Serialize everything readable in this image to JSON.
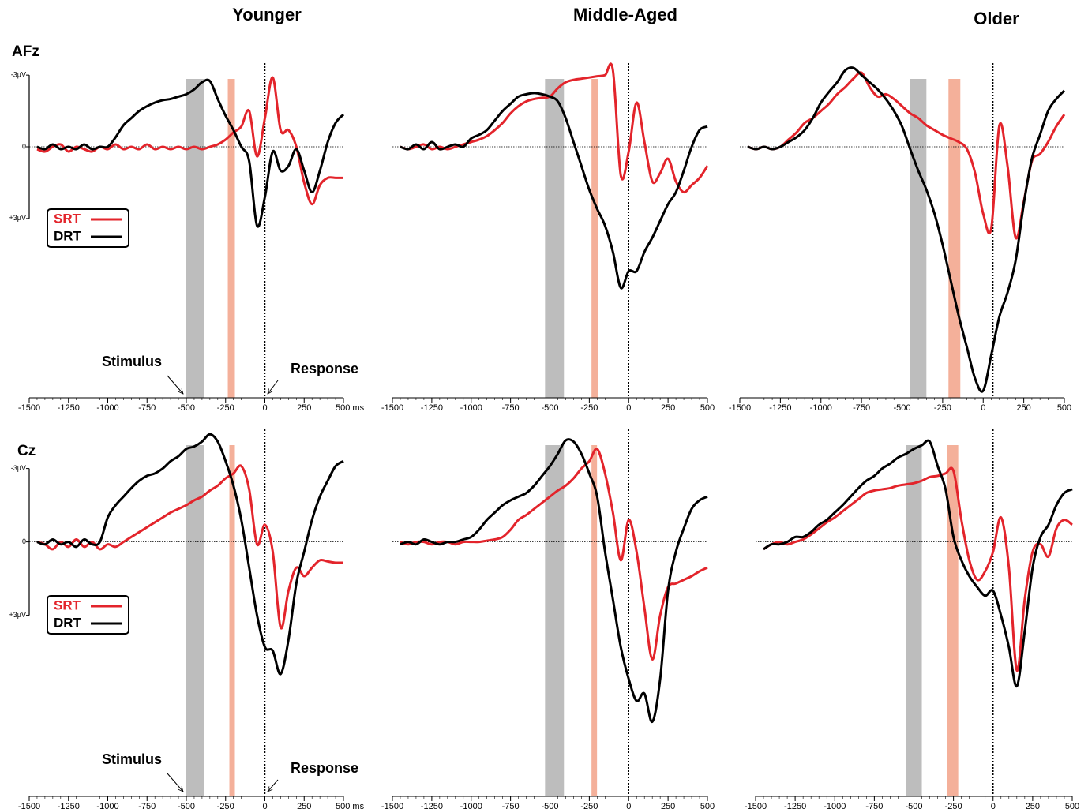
{
  "chart_data": [
    {
      "type": "line",
      "title": "Younger",
      "channel": "AFz",
      "x": [
        -1450,
        -1400,
        -1350,
        -1300,
        -1250,
        -1200,
        -1150,
        -1100,
        -1050,
        -1000,
        -950,
        -900,
        -850,
        -800,
        -750,
        -700,
        -650,
        -600,
        -550,
        -500,
        -450,
        -400,
        -350,
        -300,
        -250,
        -200,
        -150,
        -100,
        -50,
        0,
        50,
        100,
        150,
        200,
        250,
        300,
        350,
        400,
        450,
        500
      ],
      "series": [
        {
          "name": "SRT",
          "color": "#e3242b",
          "values": [
            0.1,
            0.2,
            0,
            -0.1,
            0.2,
            0,
            0.1,
            0.2,
            0,
            0.1,
            -0.1,
            0.1,
            0,
            0.1,
            -0.1,
            0.1,
            0,
            0.1,
            0,
            0.1,
            0,
            0.1,
            0,
            -0.1,
            -0.3,
            -0.6,
            -0.85,
            -1.5,
            0.4,
            -1.2,
            -2.9,
            -0.7,
            -0.7,
            0,
            1.5,
            2.4,
            1.6,
            1.3,
            1.3,
            1.3
          ]
        },
        {
          "name": "DRT",
          "color": "#000000",
          "values": [
            0,
            0.1,
            -0.1,
            0.1,
            0,
            0.1,
            -0.1,
            0.1,
            0,
            0,
            -0.4,
            -0.9,
            -1.2,
            -1.5,
            -1.7,
            -1.85,
            -1.95,
            -2.0,
            -2.1,
            -2.2,
            -2.4,
            -2.7,
            -2.75,
            -2.0,
            -1.3,
            -0.7,
            0,
            0.6,
            3.3,
            2.1,
            0.2,
            1.0,
            0.8,
            0.1,
            1.0,
            1.9,
            1.0,
            -0.2,
            -1.0,
            -1.35
          ]
        }
      ],
      "xlim": [
        -1500,
        500
      ],
      "ylim": [
        -3.5,
        10.5
      ],
      "y_inverted": true,
      "xticks": [
        -1500,
        -1250,
        -1000,
        -750,
        -500,
        -250,
        0,
        250,
        {
          "value": 500,
          "label": "500 ms"
        }
      ],
      "yticks": [
        {
          "value": -3,
          "label": "-3µV"
        },
        0,
        {
          "value": 3,
          "label": "+3µV"
        }
      ],
      "shaded": [
        {
          "x": [
            -503,
            -387
          ],
          "color": "#bdbdbd"
        },
        {
          "x": [
            -236,
            -191
          ],
          "color": "#f4b09a"
        }
      ],
      "response_line": 0,
      "zero_line": true,
      "legend": "left",
      "annotations": [
        "Stimulus",
        "Response"
      ]
    },
    {
      "type": "line",
      "title": "Middle-Aged",
      "x": [
        -1450,
        -1400,
        -1350,
        -1300,
        -1250,
        -1200,
        -1150,
        -1100,
        -1050,
        -1000,
        -950,
        -900,
        -850,
        -800,
        -750,
        -700,
        -650,
        -600,
        -550,
        -500,
        -450,
        -400,
        -350,
        -300,
        -250,
        -200,
        -150,
        -100,
        -50,
        0,
        50,
        100,
        150,
        200,
        250,
        300,
        350,
        400,
        450,
        500
      ],
      "series": [
        {
          "color": "#e3242b",
          "values": [
            0,
            0.1,
            0,
            -0.1,
            0.1,
            0,
            0.1,
            0,
            -0.1,
            -0.2,
            -0.3,
            -0.45,
            -0.7,
            -1.0,
            -1.4,
            -1.7,
            -1.9,
            -2.0,
            -2.05,
            -2.1,
            -2.45,
            -2.7,
            -2.8,
            -2.85,
            -2.9,
            -2.95,
            -3.0,
            -3.2,
            1.2,
            0.2,
            -1.85,
            -0.2,
            1.45,
            1.1,
            0.5,
            1.45,
            1.9,
            1.6,
            1.3,
            0.8
          ]
        },
        {
          "color": "#000000",
          "values": [
            0,
            0.1,
            -0.1,
            0.1,
            -0.2,
            0.1,
            0,
            -0.1,
            0,
            -0.35,
            -0.5,
            -0.7,
            -1.1,
            -1.5,
            -1.8,
            -2.1,
            -2.2,
            -2.25,
            -2.2,
            -2.1,
            -1.9,
            -1.2,
            -0.2,
            0.8,
            1.8,
            2.6,
            3.3,
            4.4,
            5.9,
            5.2,
            5.2,
            4.4,
            3.8,
            3.1,
            2.4,
            1.9,
            1.0,
            0,
            -0.7,
            -0.85
          ]
        }
      ],
      "xlim": [
        -1500,
        500
      ],
      "ylim": [
        -3.5,
        10.5
      ],
      "y_inverted": true,
      "xticks": [
        -1500,
        -1250,
        -1000,
        -750,
        -500,
        -250,
        0,
        250,
        500
      ],
      "shaded": [
        {
          "x": [
            -531,
            -411
          ],
          "color": "#bdbdbd"
        },
        {
          "x": [
            -236,
            -195
          ],
          "color": "#f4b09a"
        }
      ],
      "response_line": 0,
      "zero_line": true
    },
    {
      "type": "line",
      "title": "Older",
      "x": [
        -1450,
        -1400,
        -1350,
        -1300,
        -1250,
        -1200,
        -1150,
        -1100,
        -1050,
        -1000,
        -950,
        -900,
        -850,
        -800,
        -750,
        -700,
        -650,
        -600,
        -550,
        -500,
        -450,
        -400,
        -350,
        -300,
        -250,
        -200,
        -150,
        -100,
        -50,
        0,
        50,
        100,
        150,
        200,
        250,
        300,
        350,
        400,
        450,
        500
      ],
      "series": [
        {
          "color": "#e3242b",
          "values": [
            0,
            0.1,
            0,
            0.1,
            0,
            -0.3,
            -0.6,
            -1.0,
            -1.2,
            -1.5,
            -1.8,
            -2.2,
            -2.5,
            -2.85,
            -3.1,
            -2.5,
            -2.1,
            -2.2,
            -2.0,
            -1.7,
            -1.4,
            -1.2,
            -0.9,
            -0.7,
            -0.5,
            -0.35,
            -0.2,
            0.1,
            1.1,
            2.8,
            3.4,
            -0.9,
            0.8,
            3.8,
            2.3,
            0.6,
            0.3,
            -0.2,
            -0.85,
            -1.35
          ]
        },
        {
          "color": "#000000",
          "values": [
            0,
            0.1,
            0,
            0.1,
            0,
            -0.2,
            -0.4,
            -0.7,
            -1.2,
            -1.85,
            -2.3,
            -2.7,
            -3.2,
            -3.3,
            -3.0,
            -2.7,
            -2.4,
            -2.0,
            -1.5,
            -0.85,
            0.1,
            1.0,
            1.8,
            2.8,
            4.1,
            5.6,
            7.1,
            8.4,
            9.7,
            10.2,
            8.7,
            7.1,
            6.1,
            4.75,
            2.4,
            0.5,
            -0.5,
            -1.5,
            -2.0,
            -2.35
          ]
        }
      ],
      "xlim": [
        -1500,
        500
      ],
      "ylim": [
        -3.5,
        10.5
      ],
      "y_inverted": true,
      "xticks": [
        -1500,
        -1250,
        -1000,
        -750,
        -500,
        -250,
        0,
        250,
        500
      ],
      "shaded": [
        {
          "x": [
            -453,
            -350
          ],
          "color": "#bdbdbd"
        },
        {
          "x": [
            -214,
            -141
          ],
          "color": "#f4b09a"
        }
      ],
      "response_line": 60,
      "zero_line": true
    },
    {
      "type": "line",
      "channel": "Cz",
      "x": [
        -1450,
        -1400,
        -1350,
        -1300,
        -1250,
        -1200,
        -1150,
        -1100,
        -1050,
        -1000,
        -950,
        -900,
        -850,
        -800,
        -750,
        -700,
        -650,
        -600,
        -550,
        -500,
        -450,
        -400,
        -350,
        -300,
        -250,
        -200,
        -150,
        -100,
        -50,
        0,
        50,
        100,
        150,
        200,
        250,
        300,
        350,
        400,
        450,
        500
      ],
      "series": [
        {
          "name": "SRT",
          "color": "#e3242b",
          "values": [
            0,
            0.1,
            0.3,
            0,
            0.2,
            -0.1,
            0.2,
            0,
            0.3,
            0.1,
            0.2,
            0,
            -0.2,
            -0.4,
            -0.6,
            -0.8,
            -1.0,
            -1.2,
            -1.35,
            -1.5,
            -1.7,
            -1.85,
            -2.1,
            -2.3,
            -2.6,
            -2.8,
            -3.1,
            -2.15,
            0.1,
            -0.7,
            0.4,
            3.5,
            2.0,
            1.05,
            1.4,
            1.05,
            0.75,
            0.8,
            0.85,
            0.85
          ]
        },
        {
          "name": "DRT",
          "color": "#000000",
          "values": [
            0,
            0.1,
            -0.1,
            0.1,
            0,
            0.2,
            -0.1,
            0.1,
            0,
            -1.0,
            -1.5,
            -1.85,
            -2.2,
            -2.5,
            -2.7,
            -2.8,
            -3.0,
            -3.3,
            -3.5,
            -3.8,
            -3.9,
            -4.1,
            -4.4,
            -4.1,
            -3.3,
            -2.3,
            -0.9,
            1.05,
            3.0,
            4.3,
            4.45,
            5.4,
            4.0,
            1.7,
            0.4,
            -0.9,
            -1.85,
            -2.5,
            -3.1,
            -3.3
          ]
        }
      ],
      "xlim": [
        -1500,
        500
      ],
      "ylim": [
        -4.6,
        10.4
      ],
      "y_inverted": true,
      "xticks": [
        -1500,
        -1250,
        -1000,
        -750,
        -500,
        -250,
        0,
        250,
        {
          "value": 500,
          "label": "500 ms"
        }
      ],
      "yticks": [
        {
          "value": -3,
          "label": "-3µV"
        },
        0,
        {
          "value": 3,
          "label": "+3µV"
        }
      ],
      "shaded": [
        {
          "x": [
            -503,
            -387
          ],
          "color": "#bdbdbd"
        },
        {
          "x": [
            -226,
            -191
          ],
          "color": "#f4b09a"
        }
      ],
      "response_line": 0,
      "zero_line": true,
      "legend": "left",
      "annotations": [
        "Stimulus",
        "Response"
      ]
    },
    {
      "type": "line",
      "x": [
        -1450,
        -1400,
        -1350,
        -1300,
        -1250,
        -1200,
        -1150,
        -1100,
        -1050,
        -1000,
        -950,
        -900,
        -850,
        -800,
        -750,
        -700,
        -650,
        -600,
        -550,
        -500,
        -450,
        -400,
        -350,
        -300,
        -250,
        -200,
        -150,
        -100,
        -50,
        0,
        50,
        100,
        150,
        200,
        250,
        300,
        350,
        400,
        450,
        500
      ],
      "series": [
        {
          "color": "#e3242b",
          "values": [
            0,
            0.1,
            0,
            0,
            0.1,
            0,
            0,
            0.1,
            0,
            0,
            0,
            -0.05,
            -0.1,
            -0.2,
            -0.5,
            -0.9,
            -1.1,
            -1.35,
            -1.6,
            -1.85,
            -2.1,
            -2.3,
            -2.6,
            -3.0,
            -3.3,
            -3.8,
            -2.8,
            -1.2,
            0.75,
            -0.9,
            0.4,
            2.7,
            4.8,
            3.0,
            1.85,
            1.7,
            1.55,
            1.4,
            1.2,
            1.05
          ]
        },
        {
          "color": "#000000",
          "values": [
            0.1,
            0,
            0.1,
            -0.1,
            0,
            0.1,
            0,
            0,
            -0.1,
            -0.2,
            -0.5,
            -0.9,
            -1.2,
            -1.5,
            -1.7,
            -1.85,
            -2.0,
            -2.3,
            -2.7,
            -3.1,
            -3.6,
            -4.15,
            -4.1,
            -3.6,
            -2.8,
            -1.85,
            0.4,
            2.35,
            4.3,
            5.6,
            6.5,
            6.2,
            7.35,
            5.6,
            2.0,
            0.4,
            -0.55,
            -1.35,
            -1.7,
            -1.85
          ]
        }
      ],
      "xlim": [
        -1500,
        500
      ],
      "ylim": [
        -4.6,
        10.4
      ],
      "y_inverted": true,
      "xticks": [
        -1500,
        -1250,
        -1000,
        -750,
        -500,
        -250,
        0,
        250,
        500
      ],
      "shaded": [
        {
          "x": [
            -531,
            -411
          ],
          "color": "#bdbdbd"
        },
        {
          "x": [
            -236,
            -201
          ],
          "color": "#f4b09a"
        }
      ],
      "response_line": 0,
      "zero_line": true
    },
    {
      "type": "line",
      "x": [
        -1450,
        -1400,
        -1350,
        -1300,
        -1250,
        -1200,
        -1150,
        -1100,
        -1050,
        -1000,
        -950,
        -900,
        -850,
        -800,
        -750,
        -700,
        -650,
        -600,
        -550,
        -500,
        -450,
        -400,
        -350,
        -300,
        -250,
        -200,
        -150,
        -100,
        -50,
        0,
        50,
        100,
        150,
        200,
        250,
        300,
        350,
        400,
        450,
        500
      ],
      "series": [
        {
          "color": "#e3242b",
          "values": [
            0.3,
            0.1,
            0,
            0.1,
            0,
            -0.1,
            -0.3,
            -0.55,
            -0.8,
            -1.0,
            -1.25,
            -1.5,
            -1.75,
            -2.0,
            -2.1,
            -2.15,
            -2.2,
            -2.3,
            -2.35,
            -2.4,
            -2.5,
            -2.65,
            -2.7,
            -2.8,
            -2.9,
            -0.9,
            0.75,
            1.55,
            1.2,
            0.4,
            -1.0,
            1.05,
            5.25,
            2.35,
            0.4,
            0.1,
            0.6,
            -0.55,
            -0.9,
            -0.7
          ]
        },
        {
          "color": "#000000",
          "values": [
            0.3,
            0.1,
            0.1,
            0,
            -0.2,
            -0.2,
            -0.4,
            -0.7,
            -0.9,
            -1.2,
            -1.5,
            -1.85,
            -2.2,
            -2.5,
            -2.7,
            -3.0,
            -3.2,
            -3.45,
            -3.6,
            -3.8,
            -3.95,
            -4.1,
            -3.1,
            -2.15,
            -0.2,
            0.75,
            1.4,
            1.85,
            2.2,
            2.0,
            3.0,
            4.3,
            5.9,
            3.65,
            1.05,
            -0.2,
            -0.7,
            -1.5,
            -2.0,
            -2.15
          ]
        }
      ],
      "xlim": [
        -1500,
        500
      ],
      "ylim": [
        -4.6,
        10.4
      ],
      "y_inverted": true,
      "xticks": [
        -1500,
        -1250,
        -1000,
        -750,
        -500,
        -250,
        0,
        250,
        500
      ],
      "shaded": [
        {
          "x": [
            -550,
            -450
          ],
          "color": "#bdbdbd"
        },
        {
          "x": [
            -290,
            -220
          ],
          "color": "#f4b09a"
        }
      ],
      "response_line": 0,
      "zero_line": true
    }
  ]
}
